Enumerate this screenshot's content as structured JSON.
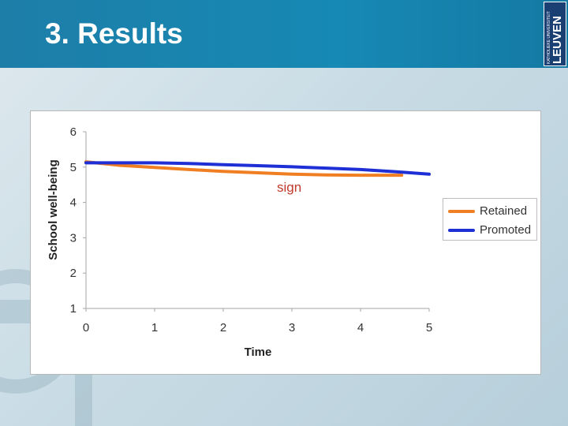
{
  "slide": {
    "title": "3. Results",
    "logo": {
      "text_main": "LEUVEN",
      "text_small": "KATHOLIEKE UNIVERSITEIT",
      "color": "#1a3f73"
    }
  },
  "chart_data": {
    "type": "line",
    "xlabel": "Time",
    "ylabel": "School well-being",
    "xlim": [
      0,
      5
    ],
    "ylim": [
      1,
      6
    ],
    "x_ticks": [
      "0",
      "1",
      "2",
      "3",
      "4",
      "5"
    ],
    "y_ticks": [
      "1",
      "2",
      "3",
      "4",
      "5",
      "6"
    ],
    "grid": false,
    "legend_position": "right",
    "annotation": "sign",
    "annotation_color": "#c0392b",
    "series": [
      {
        "name": "Retained",
        "color": "#f07f23",
        "x": [
          0,
          0.5,
          1,
          1.5,
          2,
          2.5,
          3,
          3.5,
          4,
          4.5,
          4.6
        ],
        "y": [
          5.15,
          5.05,
          4.99,
          4.93,
          4.88,
          4.84,
          4.8,
          4.78,
          4.77,
          4.77,
          4.77
        ]
      },
      {
        "name": "Promoted",
        "color": "#1f2fd6",
        "x": [
          0,
          0.5,
          1,
          1.5,
          2,
          2.5,
          3,
          3.5,
          4,
          4.5,
          5
        ],
        "y": [
          5.12,
          5.12,
          5.12,
          5.1,
          5.07,
          5.04,
          5.01,
          4.97,
          4.93,
          4.87,
          4.8
        ]
      }
    ]
  }
}
